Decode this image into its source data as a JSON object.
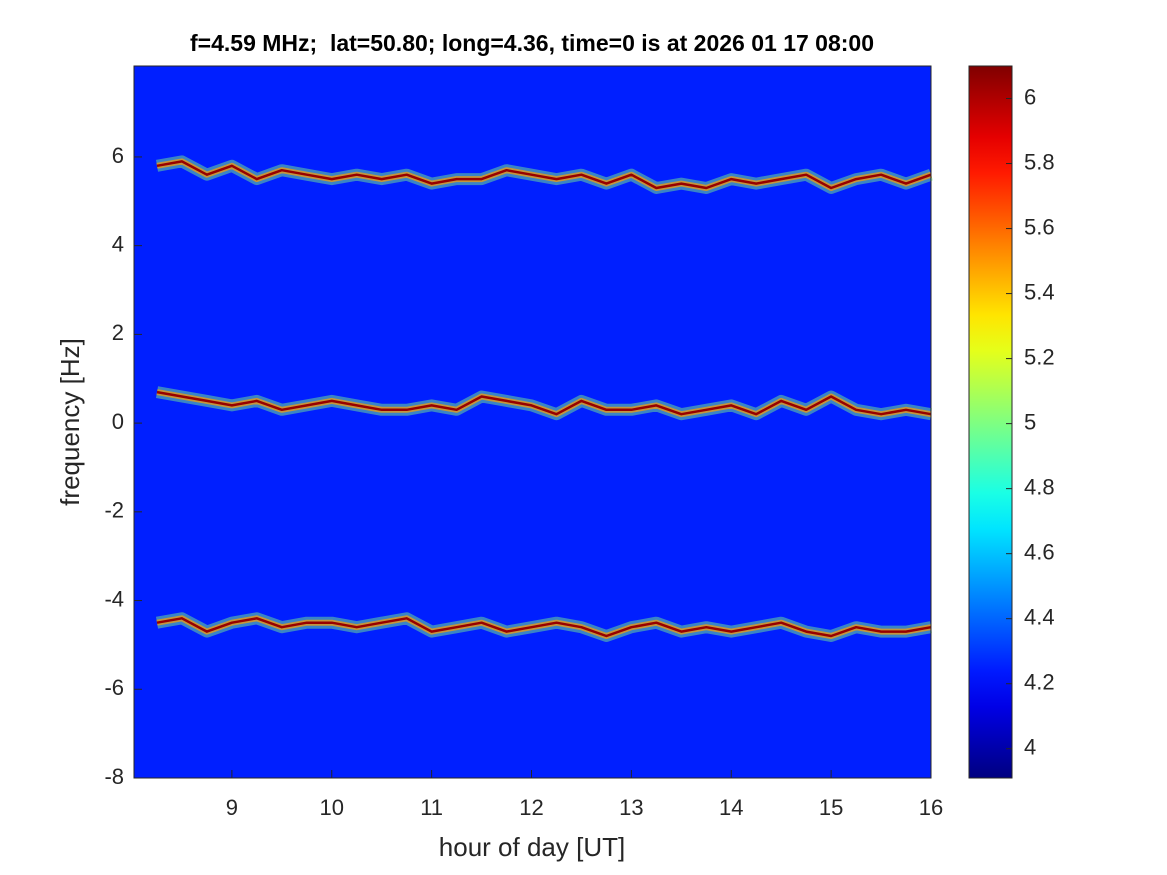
{
  "chart_data": {
    "type": "spectrogram",
    "title": "f=4.59 MHz;  lat=50.80; long=4.36, time=0 is at 2026 01 17 08:00",
    "x_label": "hour of day [UT]",
    "y_label": "frequency [Hz]",
    "xlim": [
      8.02,
      16
    ],
    "xticks": [
      9,
      10,
      11,
      12,
      13,
      14,
      15,
      16
    ],
    "ylim": [
      -8,
      8.05
    ],
    "yticks": [
      -8,
      -6,
      -4,
      -2,
      0,
      2,
      4,
      6
    ],
    "colormap": "jet",
    "clim": [
      3.91,
      6.1
    ],
    "cticks": [
      4,
      4.2,
      4.4,
      4.6,
      4.8,
      5,
      5.2,
      5.4,
      5.6,
      5.8,
      6
    ],
    "background_level": 4.25,
    "ridge_level": 6.05,
    "x": [
      8.25,
      8.5,
      8.75,
      9,
      9.25,
      9.5,
      9.75,
      10,
      10.25,
      10.5,
      10.75,
      11,
      11.25,
      11.5,
      11.75,
      12,
      12.25,
      12.5,
      12.75,
      13,
      13.25,
      13.5,
      13.75,
      14,
      14.25,
      14.5,
      14.75,
      15,
      15.25,
      15.5,
      15.75,
      16
    ],
    "ridges": [
      {
        "values": [
          5.8,
          5.9,
          5.6,
          5.8,
          5.5,
          5.7,
          5.6,
          5.5,
          5.6,
          5.5,
          5.6,
          5.4,
          5.5,
          5.5,
          5.7,
          5.6,
          5.5,
          5.6,
          5.4,
          5.6,
          5.3,
          5.4,
          5.3,
          5.5,
          5.4,
          5.5,
          5.6,
          5.3,
          5.5,
          5.6,
          5.4,
          5.6
        ]
      },
      {
        "values": [
          0.7,
          0.6,
          0.5,
          0.4,
          0.5,
          0.3,
          0.4,
          0.5,
          0.4,
          0.3,
          0.3,
          0.4,
          0.3,
          0.6,
          0.5,
          0.4,
          0.2,
          0.5,
          0.3,
          0.3,
          0.4,
          0.2,
          0.3,
          0.4,
          0.2,
          0.5,
          0.3,
          0.6,
          0.3,
          0.2,
          0.3,
          0.2
        ]
      },
      {
        "values": [
          -4.5,
          -4.4,
          -4.7,
          -4.5,
          -4.4,
          -4.6,
          -4.5,
          -4.5,
          -4.6,
          -4.5,
          -4.4,
          -4.7,
          -4.6,
          -4.5,
          -4.7,
          -4.6,
          -4.5,
          -4.6,
          -4.8,
          -4.6,
          -4.5,
          -4.7,
          -4.6,
          -4.7,
          -4.6,
          -4.5,
          -4.7,
          -4.8,
          -4.6,
          -4.7,
          -4.7,
          -4.6
        ]
      }
    ]
  }
}
